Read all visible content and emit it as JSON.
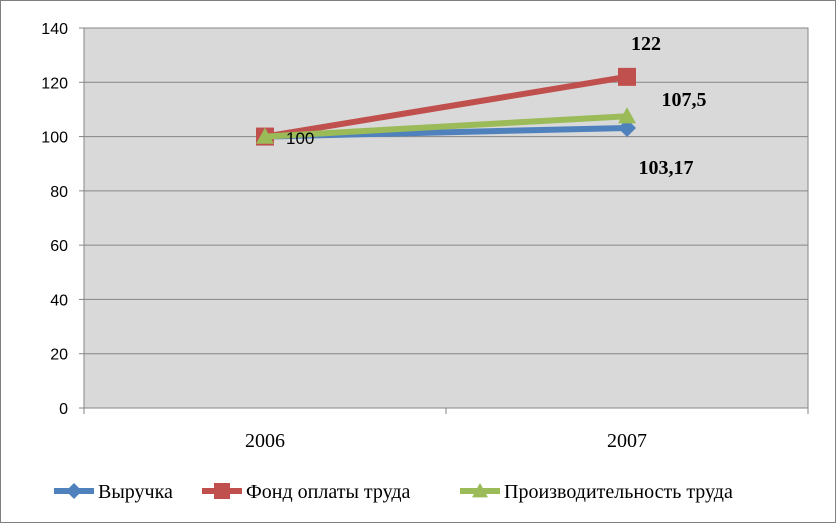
{
  "chart_data": {
    "type": "line",
    "categories": [
      "2006",
      "2007"
    ],
    "ylim": [
      0,
      140
    ],
    "yticks": [
      0,
      20,
      40,
      60,
      80,
      100,
      120,
      140
    ],
    "grid": true,
    "legend_position": "bottom",
    "series": [
      {
        "name": "Выручка",
        "values": [
          100,
          103.17
        ],
        "color": "#4f81bd",
        "marker": "diamond"
      },
      {
        "name": "Фонд оплаты труда",
        "values": [
          100,
          122
        ],
        "color": "#c0504d",
        "marker": "square"
      },
      {
        "name": "Производительность труда",
        "values": [
          100,
          107.5
        ],
        "color": "#9bbb59",
        "marker": "triangle"
      }
    ],
    "data_labels": [
      {
        "text": "100"
      },
      {
        "text": "122"
      },
      {
        "text": "107,5"
      },
      {
        "text": "103,17"
      }
    ]
  }
}
